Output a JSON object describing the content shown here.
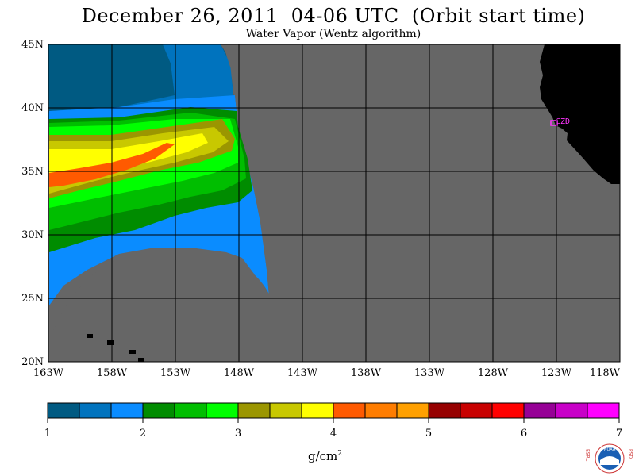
{
  "header": {
    "title": "December 26, 2011  04-06 UTC  (Orbit start time)",
    "subtitle": "Water Vapor (Wentz algorithm)"
  },
  "map": {
    "lat_labels": [
      "45N",
      "40N",
      "35N",
      "30N",
      "25N",
      "20N"
    ],
    "lon_labels": [
      "163W",
      "158W",
      "153W",
      "148W",
      "143W",
      "138W",
      "133W",
      "128W",
      "123W",
      "118W"
    ],
    "station_label": "CZD",
    "colors": {
      "no_data": "#666666",
      "land": "#000000",
      "grid": "#000000",
      "station": "#ff33ff"
    }
  },
  "colorbar": {
    "tick_labels": [
      "1",
      "2",
      "3",
      "4",
      "5",
      "6",
      "7"
    ],
    "colors": [
      "#005a82",
      "#0073be",
      "#0a8cff",
      "#008c00",
      "#00be00",
      "#00ff00",
      "#9b9600",
      "#c8c800",
      "#ffff00",
      "#ff5a00",
      "#ff7d00",
      "#ffa000",
      "#960000",
      "#c80000",
      "#ff0000",
      "#960096",
      "#c800c8",
      "#ff00ff"
    ],
    "unit": "g/cm",
    "unit_exp": "2"
  },
  "logo": {
    "left_letters": "ESRL",
    "right_letters": "PSD",
    "center": "NOAA"
  }
}
